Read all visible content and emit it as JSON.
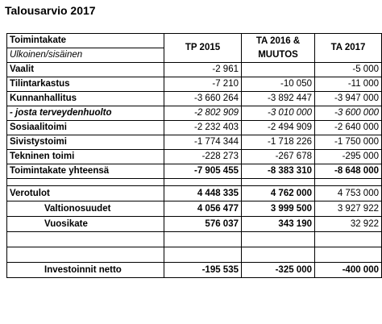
{
  "title": "Talousarvio 2017",
  "header": {
    "label_main": "Toimintakate",
    "label_sub": "Ulkoinen/sisäinen",
    "col1": "TP 2015",
    "col2_line1": "TA 2016 &",
    "col2_line2": "MUUTOS",
    "col3": "TA 2017"
  },
  "rows": [
    {
      "label": "Vaalit",
      "v1": "-2 961",
      "v2": "",
      "v3": "-5 000"
    },
    {
      "label": "Tilintarkastus",
      "v1": "-7 210",
      "v2": "-10 050",
      "v3": "-11 000"
    },
    {
      "label": "Kunnanhallitus",
      "v1": "-3 660 264",
      "v2": "-3 892 447",
      "v3": "-3 947 000"
    },
    {
      "label": "- josta terveydenhuolto",
      "v1": "-2 802 909",
      "v2": "-3 010 000",
      "v3": "-3 600 000"
    },
    {
      "label": "Sosiaalitoimi",
      "v1": "-2 232 403",
      "v2": "-2 494 909",
      "v3": "-2 640 000"
    },
    {
      "label": "Sivistystoimi",
      "v1": "-1 774 344",
      "v2": "-1 718 226",
      "v3": "-1 750 000"
    },
    {
      "label": "Tekninen toimi",
      "v1": "-228 273",
      "v2": "-267 678",
      "v3": "-295 000"
    },
    {
      "label": "Toimintakate yhteensä",
      "v1": "-7 905 455",
      "v2": "-8 383 310",
      "v3": "-8 648 000"
    }
  ],
  "income": [
    {
      "label": "Verotulot",
      "v1": "4 448 335",
      "v2": "4 762 000",
      "v3": "4 753 000"
    },
    {
      "label": "Valtionosuudet",
      "v1": "4 056 477",
      "v2": "3 999 500",
      "v3": "3 927 922"
    },
    {
      "label": "Vuosikate",
      "v1": "576 037",
      "v2": "343 190",
      "v3": "32 922"
    }
  ],
  "investments": {
    "label": "Investoinnit netto",
    "v1": "-195 535",
    "v2": "-325 000",
    "v3": "-400 000"
  }
}
